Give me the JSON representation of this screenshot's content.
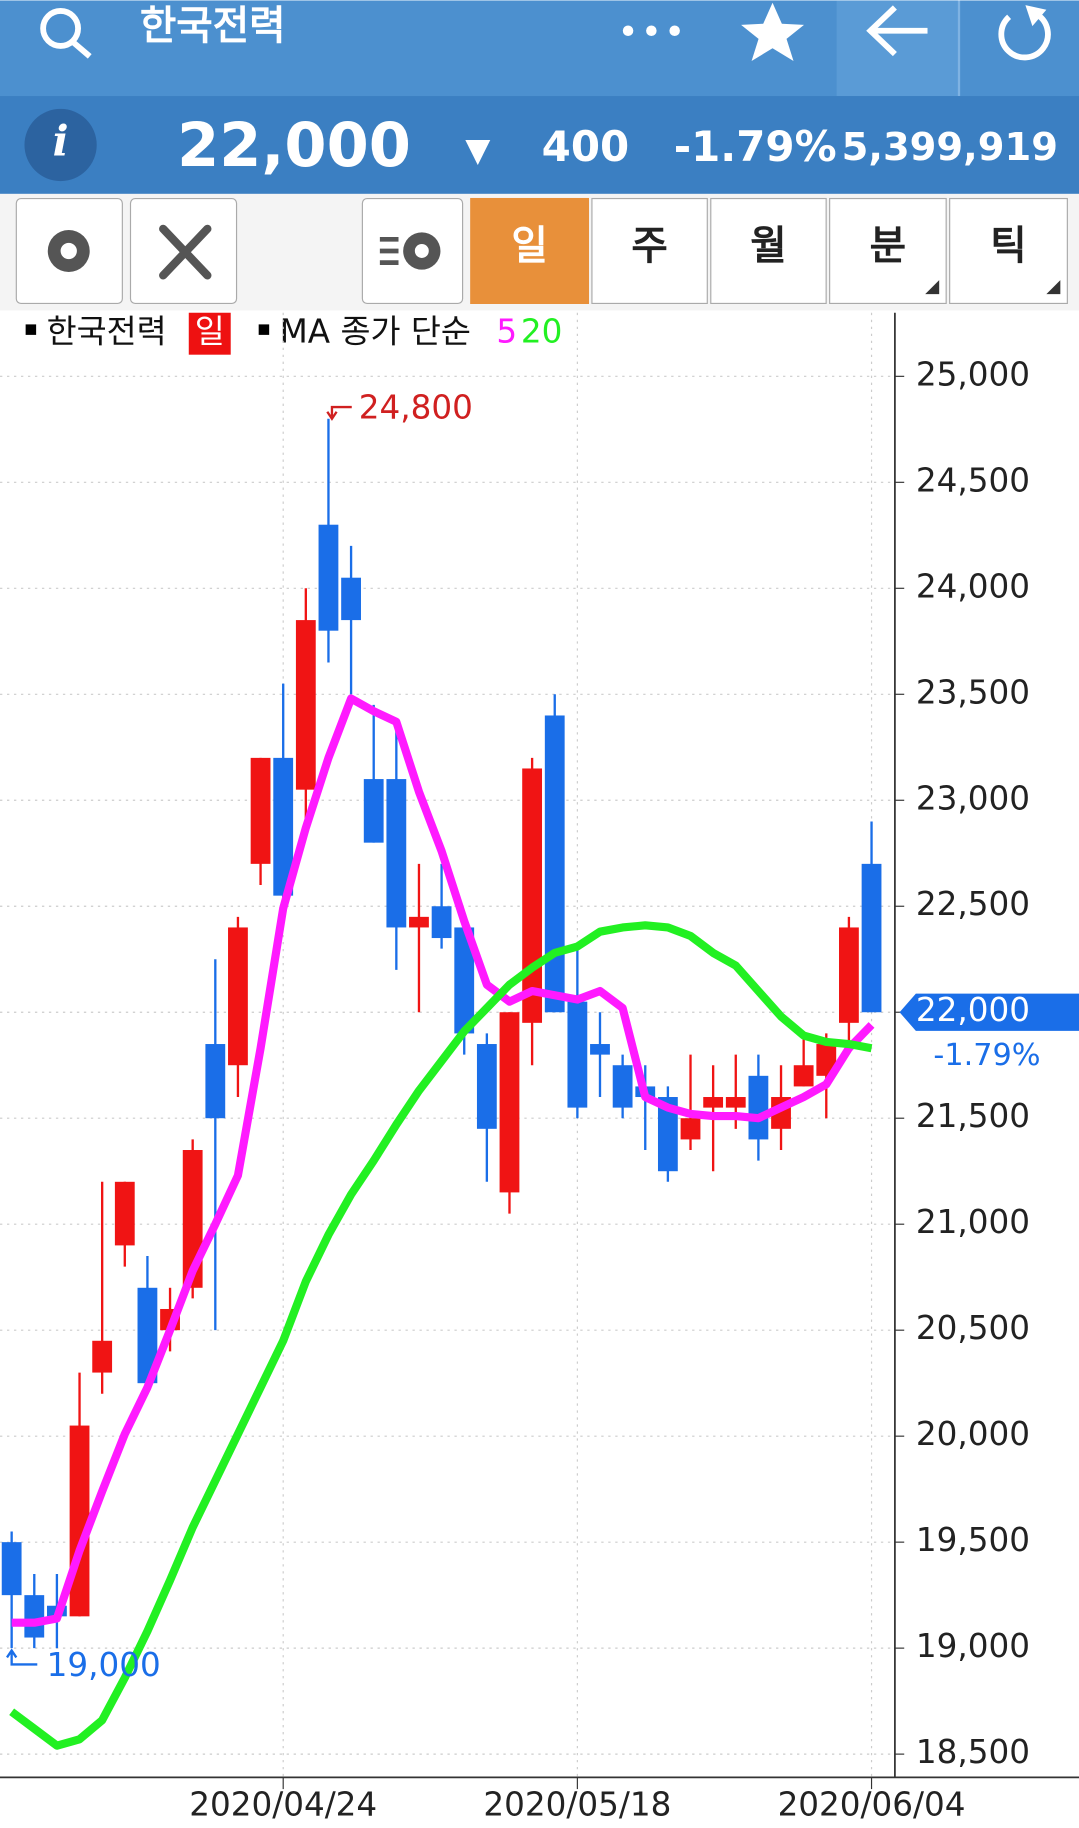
{
  "header": {
    "title": "한국전력"
  },
  "quote": {
    "price": "22,000",
    "direction": "▼",
    "change": "400",
    "change_pct": "-1.79%",
    "volume": "5,399,919"
  },
  "tabs": [
    "일",
    "주",
    "월",
    "분",
    "틱"
  ],
  "legend": {
    "name": "한국전력",
    "period": "일",
    "ma_label": "MA 종가 단순"
  },
  "chart_data": {
    "type": "candlestick",
    "categories": [
      null,
      null,
      null,
      null,
      null,
      null,
      null,
      null,
      null,
      null,
      null,
      null,
      "2020/04/24",
      null,
      null,
      null,
      null,
      null,
      null,
      null,
      null,
      null,
      null,
      null,
      null,
      "2020/05/18",
      null,
      null,
      null,
      null,
      null,
      null,
      null,
      null,
      null,
      null,
      null,
      null,
      "2020/06/04"
    ],
    "open": [
      19500,
      19250,
      19200,
      19150,
      20300,
      20900,
      20700,
      20500,
      20700,
      21850,
      21750,
      22700,
      23200,
      23050,
      24300,
      24050,
      23100,
      23100,
      22400,
      22500,
      22400,
      21850,
      21150,
      21950,
      23400,
      22050,
      21850,
      21750,
      21650,
      21600,
      21400,
      21550,
      21550,
      21700,
      21450,
      21650,
      21700,
      21950,
      22700
    ],
    "high": [
      19550,
      19350,
      19350,
      20300,
      21200,
      21200,
      20850,
      20700,
      21400,
      22250,
      22450,
      23200,
      23550,
      24000,
      24800,
      24200,
      23450,
      23350,
      22700,
      22700,
      22450,
      21900,
      22000,
      23200,
      23500,
      22300,
      22000,
      21800,
      21750,
      21650,
      21800,
      21750,
      21800,
      21800,
      21750,
      21900,
      21900,
      22450,
      22900
    ],
    "low": [
      19000,
      19000,
      19000,
      19150,
      20200,
      20800,
      20200,
      20400,
      20650,
      20500,
      21600,
      22600,
      22500,
      22900,
      23650,
      23500,
      22800,
      22200,
      22000,
      22300,
      21800,
      21200,
      21050,
      21750,
      22000,
      21500,
      21600,
      21500,
      21350,
      21200,
      21350,
      21250,
      21450,
      21300,
      21350,
      21650,
      21500,
      21850,
      22000
    ],
    "close": [
      19250,
      19050,
      19150,
      20050,
      20450,
      21200,
      20250,
      20600,
      21350,
      21500,
      22400,
      23200,
      22550,
      23850,
      23800,
      23850,
      22800,
      22400,
      22450,
      22350,
      21900,
      21450,
      22000,
      23150,
      22000,
      21550,
      21800,
      21550,
      21600,
      21250,
      21500,
      21600,
      21600,
      21400,
      21600,
      21750,
      21850,
      22400,
      22000
    ],
    "up_color": "#f01414",
    "down_color": "#1a6ee8",
    "ma": [
      {
        "name": "5",
        "color": "#ff1aff",
        "values": [
          19120,
          19120,
          19140,
          19460,
          19740,
          20010,
          20230,
          20500,
          20780,
          21000,
          21230,
          21830,
          22490,
          22870,
          23200,
          23480,
          23420,
          23370,
          23040,
          22760,
          22430,
          22130,
          22050,
          22100,
          22080,
          22060,
          22100,
          22020,
          21600,
          21550,
          21520,
          21510,
          21510,
          21500,
          21550,
          21600,
          21660,
          21830,
          21940
        ]
      },
      {
        "name": "20",
        "color": "#22f022",
        "values": [
          18700,
          18620,
          18540,
          18570,
          18660,
          18860,
          19080,
          19320,
          19570,
          19790,
          20010,
          20230,
          20450,
          20730,
          20950,
          21140,
          21300,
          21470,
          21630,
          21770,
          21910,
          22020,
          22130,
          22210,
          22280,
          22310,
          22380,
          22400,
          22410,
          22400,
          22360,
          22280,
          22220,
          22100,
          21980,
          21890,
          21860,
          21850,
          21830
        ]
      }
    ],
    "ylim": [
      18390,
      25300
    ],
    "yticks": [
      {
        "value": 18500,
        "label": "18,500"
      },
      {
        "value": 19000,
        "label": "19,000"
      },
      {
        "value": 19500,
        "label": "19,500"
      },
      {
        "value": 20000,
        "label": "20,000"
      },
      {
        "value": 20500,
        "label": "20,500"
      },
      {
        "value": 21000,
        "label": "21,000"
      },
      {
        "value": 21500,
        "label": "21,500"
      },
      {
        "value": 22000,
        "label": "22,000"
      },
      {
        "value": 22500,
        "label": "22,500"
      },
      {
        "value": 23000,
        "label": "23,000"
      },
      {
        "value": 23500,
        "label": "23,500"
      },
      {
        "value": 24000,
        "label": "24,000"
      },
      {
        "value": 24500,
        "label": "24,500"
      },
      {
        "value": 25000,
        "label": "25,000"
      }
    ],
    "grid": true,
    "high_label": {
      "value": 24800,
      "label": "24,800"
    },
    "low_label": {
      "value": 19000,
      "label": "19,000"
    },
    "last_price": {
      "value": 22000,
      "label": "22,000"
    },
    "last_change": "-1.79%"
  }
}
